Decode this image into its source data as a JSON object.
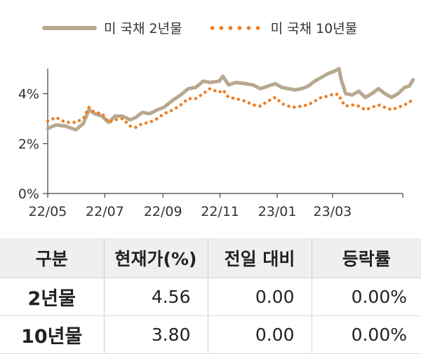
{
  "legend": [
    {
      "label": "미 국채 2년물"
    },
    {
      "label": "미 국채 10년물"
    }
  ],
  "chart_data": {
    "type": "line",
    "title": "",
    "xlabel": "",
    "ylabel": "",
    "x_range": [
      "2022-05-01",
      "2023-05-15"
    ],
    "ylim": [
      0,
      5
    ],
    "yticks": [
      0,
      2,
      4
    ],
    "ytick_labels": [
      "0%",
      "2%",
      "4%"
    ],
    "xtick_dates": [
      "2022-05-01",
      "2022-07-01",
      "2022-09-01",
      "2022-11-01",
      "2023-01-01",
      "2023-03-01"
    ],
    "xtick_labels": [
      "22/05",
      "22/07",
      "22/09",
      "22/11",
      "23/01",
      "23/03"
    ],
    "grid": false,
    "legend_position": "top",
    "series": [
      {
        "name": "미 국채 2년물",
        "style": "solid",
        "color": "#b8a88f",
        "points": [
          [
            "2022-05-01",
            2.6
          ],
          [
            "2022-05-10",
            2.75
          ],
          [
            "2022-05-20",
            2.7
          ],
          [
            "2022-05-31",
            2.55
          ],
          [
            "2022-06-08",
            2.8
          ],
          [
            "2022-06-14",
            3.35
          ],
          [
            "2022-06-20",
            3.2
          ],
          [
            "2022-06-28",
            3.1
          ],
          [
            "2022-07-05",
            2.85
          ],
          [
            "2022-07-12",
            3.1
          ],
          [
            "2022-07-20",
            3.1
          ],
          [
            "2022-07-28",
            2.95
          ],
          [
            "2022-08-03",
            3.05
          ],
          [
            "2022-08-10",
            3.25
          ],
          [
            "2022-08-18",
            3.2
          ],
          [
            "2022-08-26",
            3.35
          ],
          [
            "2022-09-02",
            3.45
          ],
          [
            "2022-09-12",
            3.75
          ],
          [
            "2022-09-20",
            3.95
          ],
          [
            "2022-09-28",
            4.2
          ],
          [
            "2022-10-06",
            4.25
          ],
          [
            "2022-10-14",
            4.5
          ],
          [
            "2022-10-21",
            4.45
          ],
          [
            "2022-10-31",
            4.5
          ],
          [
            "2022-11-04",
            4.7
          ],
          [
            "2022-11-10",
            4.35
          ],
          [
            "2022-11-18",
            4.45
          ],
          [
            "2022-11-28",
            4.4
          ],
          [
            "2022-12-06",
            4.35
          ],
          [
            "2022-12-14",
            4.2
          ],
          [
            "2022-12-22",
            4.3
          ],
          [
            "2022-12-30",
            4.4
          ],
          [
            "2023-01-06",
            4.25
          ],
          [
            "2023-01-13",
            4.2
          ],
          [
            "2023-01-20",
            4.15
          ],
          [
            "2023-01-27",
            4.2
          ],
          [
            "2023-02-03",
            4.3
          ],
          [
            "2023-02-10",
            4.5
          ],
          [
            "2023-02-17",
            4.65
          ],
          [
            "2023-02-24",
            4.8
          ],
          [
            "2023-03-03",
            4.9
          ],
          [
            "2023-03-08",
            5.0
          ],
          [
            "2023-03-10",
            4.6
          ],
          [
            "2023-03-15",
            4.0
          ],
          [
            "2023-03-22",
            3.95
          ],
          [
            "2023-03-29",
            4.1
          ],
          [
            "2023-04-05",
            3.85
          ],
          [
            "2023-04-12",
            4.0
          ],
          [
            "2023-04-19",
            4.2
          ],
          [
            "2023-04-26",
            4.0
          ],
          [
            "2023-05-03",
            3.85
          ],
          [
            "2023-05-10",
            4.0
          ],
          [
            "2023-05-17",
            4.25
          ],
          [
            "2023-05-22",
            4.3
          ],
          [
            "2023-05-26",
            4.56
          ]
        ]
      },
      {
        "name": "미 국채 10년물",
        "style": "dotted",
        "color": "#ee7d22",
        "points": [
          [
            "2022-05-01",
            2.9
          ],
          [
            "2022-05-10",
            3.05
          ],
          [
            "2022-05-20",
            2.85
          ],
          [
            "2022-05-31",
            2.85
          ],
          [
            "2022-06-08",
            3.0
          ],
          [
            "2022-06-14",
            3.45
          ],
          [
            "2022-06-20",
            3.25
          ],
          [
            "2022-06-28",
            3.2
          ],
          [
            "2022-07-05",
            2.85
          ],
          [
            "2022-07-12",
            2.95
          ],
          [
            "2022-07-20",
            3.0
          ],
          [
            "2022-07-28",
            2.7
          ],
          [
            "2022-08-03",
            2.65
          ],
          [
            "2022-08-10",
            2.8
          ],
          [
            "2022-08-18",
            2.85
          ],
          [
            "2022-08-26",
            3.0
          ],
          [
            "2022-09-02",
            3.2
          ],
          [
            "2022-09-12",
            3.35
          ],
          [
            "2022-09-20",
            3.55
          ],
          [
            "2022-09-28",
            3.8
          ],
          [
            "2022-10-06",
            3.8
          ],
          [
            "2022-10-14",
            4.0
          ],
          [
            "2022-10-21",
            4.2
          ],
          [
            "2022-10-31",
            4.05
          ],
          [
            "2022-11-04",
            4.15
          ],
          [
            "2022-11-10",
            3.85
          ],
          [
            "2022-11-18",
            3.8
          ],
          [
            "2022-11-28",
            3.7
          ],
          [
            "2022-12-06",
            3.55
          ],
          [
            "2022-12-14",
            3.5
          ],
          [
            "2022-12-22",
            3.7
          ],
          [
            "2022-12-30",
            3.85
          ],
          [
            "2023-01-06",
            3.6
          ],
          [
            "2023-01-13",
            3.5
          ],
          [
            "2023-01-20",
            3.45
          ],
          [
            "2023-01-27",
            3.5
          ],
          [
            "2023-02-03",
            3.55
          ],
          [
            "2023-02-10",
            3.7
          ],
          [
            "2023-02-17",
            3.85
          ],
          [
            "2023-02-24",
            3.9
          ],
          [
            "2023-03-03",
            4.0
          ],
          [
            "2023-03-08",
            3.95
          ],
          [
            "2023-03-10",
            3.75
          ],
          [
            "2023-03-15",
            3.5
          ],
          [
            "2023-03-22",
            3.55
          ],
          [
            "2023-03-29",
            3.5
          ],
          [
            "2023-04-05",
            3.35
          ],
          [
            "2023-04-12",
            3.45
          ],
          [
            "2023-04-19",
            3.55
          ],
          [
            "2023-04-26",
            3.45
          ],
          [
            "2023-05-03",
            3.35
          ],
          [
            "2023-05-10",
            3.45
          ],
          [
            "2023-05-17",
            3.55
          ],
          [
            "2023-05-22",
            3.65
          ],
          [
            "2023-05-26",
            3.8
          ]
        ]
      }
    ]
  },
  "table": {
    "headers": [
      "구분",
      "현재가(%)",
      "전일 대비",
      "등락률"
    ],
    "rows": [
      {
        "name": "2년물",
        "price": "4.56",
        "change": "0.00",
        "rate": "0.00%"
      },
      {
        "name": "10년물",
        "price": "3.80",
        "change": "0.00",
        "rate": "0.00%"
      }
    ]
  }
}
